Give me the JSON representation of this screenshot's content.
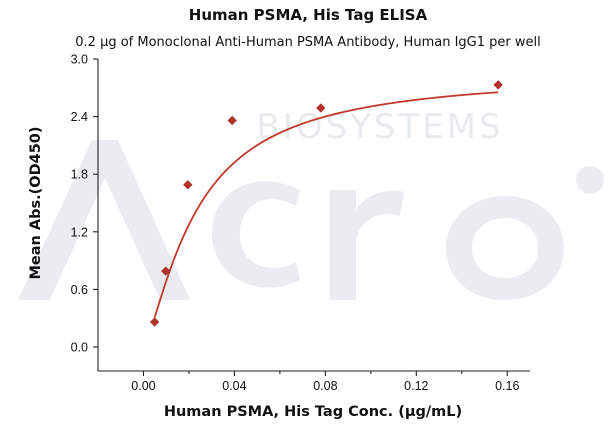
{
  "chart_data": {
    "type": "scatter",
    "title": "Human PSMA, His Tag ELISA",
    "subtitle": "0.2 µg of Monoclonal Anti-Human PSMA Antibody, Human IgG1 per well",
    "xlabel": "Human PSMA, His Tag Conc. (µg/mL)",
    "ylabel": "Mean Abs.(OD450)",
    "xlim": [
      -0.02,
      0.17
    ],
    "ylim": [
      -0.25,
      3.0
    ],
    "xticks": [
      "0.00",
      "0.04",
      "0.08",
      "0.12",
      "0.16"
    ],
    "xtick_values": [
      0.0,
      0.04,
      0.08,
      0.12,
      0.16
    ],
    "yticks": [
      "0.0",
      "0.6",
      "1.2",
      "1.8",
      "2.4",
      "3.0"
    ],
    "ytick_values": [
      0.0,
      0.6,
      1.2,
      1.8,
      2.4,
      3.0
    ],
    "grid": false,
    "marker": "diamond",
    "fit": "four-parameter logistic",
    "colors": {
      "series": "#b5322a",
      "curve": "#c0392b"
    },
    "series": [
      {
        "x": [
          0.0049,
          0.0098,
          0.0195,
          0.039,
          0.078,
          0.156
        ],
        "y": [
          0.26,
          0.79,
          1.69,
          2.36,
          2.49,
          2.73
        ]
      }
    ]
  },
  "watermark": {
    "text": "BIOSYSTEMS"
  }
}
